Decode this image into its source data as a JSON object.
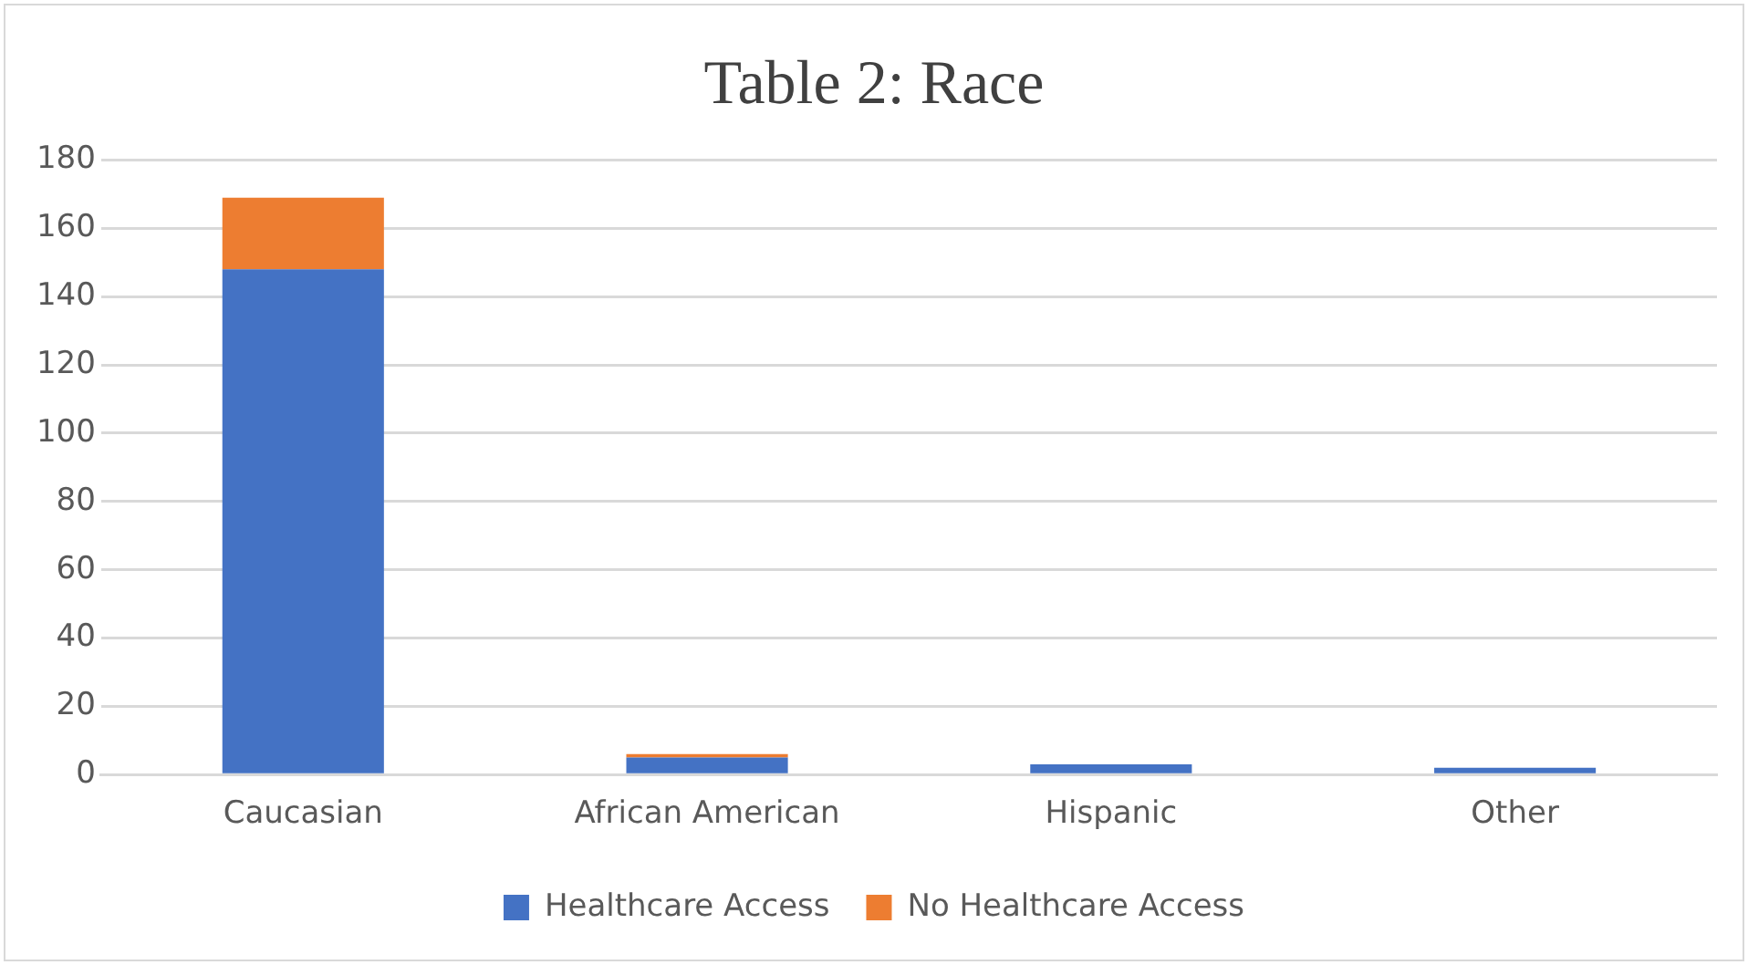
{
  "chart_data": {
    "type": "bar",
    "title": "Table 2: Race",
    "categories": [
      "Caucasian",
      "African American",
      "Hispanic",
      "Other"
    ],
    "stacked": true,
    "series": [
      {
        "name": "Healthcare Access",
        "color": "#4472c4",
        "values": [
          148,
          5,
          3,
          2
        ]
      },
      {
        "name": "No Healthcare Access",
        "color": "#ed7d31",
        "values": [
          21,
          1,
          0,
          0
        ]
      }
    ],
    "ylim": [
      0,
      180
    ],
    "yticks": [
      0,
      20,
      40,
      60,
      80,
      100,
      120,
      140,
      160,
      180
    ],
    "grid": "y",
    "legend": "bottom"
  }
}
